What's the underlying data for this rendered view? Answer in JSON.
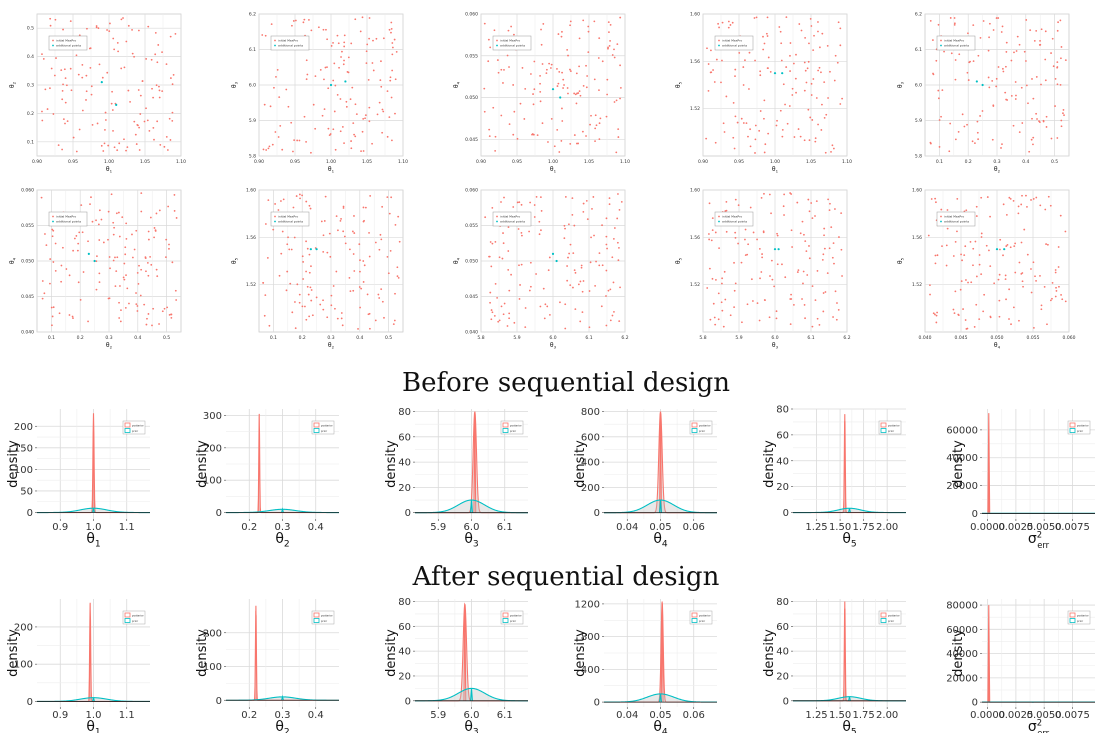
{
  "headings": {
    "before": "Before sequential design",
    "after": "After sequential design"
  },
  "colors": {
    "initial": "#f8766d",
    "additional": "#00bfc4",
    "grid": "#dadada",
    "panel_border": "#cccccc"
  },
  "chart_data": [
    {
      "type": "scatter",
      "xlabel": "θ1",
      "ylabel": "θ2",
      "xlim": [
        0.9,
        1.1
      ],
      "ylim": [
        0.05,
        0.55
      ],
      "xticks": [
        "0.90",
        "0.95",
        "1.00",
        "1.05",
        "1.10"
      ],
      "yticks": [
        "0.1",
        "0.2",
        "0.3",
        "0.4",
        "0.5"
      ],
      "legend": [
        "initial MaxPro",
        "additional points"
      ],
      "legend_pos": "top-left",
      "additional_points": [
        [
          1.01,
          0.23
        ],
        [
          0.99,
          0.31
        ]
      ],
      "n_initial": 150
    },
    {
      "type": "scatter",
      "xlabel": "θ1",
      "ylabel": "θ3",
      "xlim": [
        0.9,
        1.1
      ],
      "ylim": [
        5.8,
        6.2
      ],
      "xticks": [
        "0.90",
        "0.95",
        "1.00",
        "1.05",
        "1.10"
      ],
      "yticks": [
        "5.8",
        "5.9",
        "6.0",
        "6.1",
        "6.2"
      ],
      "legend": [
        "initial MaxPro",
        "additional points"
      ],
      "legend_pos": "top-left",
      "additional_points": [
        [
          1.02,
          6.01
        ],
        [
          1.0,
          6.0
        ]
      ],
      "n_initial": 150
    },
    {
      "type": "scatter",
      "xlabel": "θ1",
      "ylabel": "θ4",
      "xlim": [
        0.9,
        1.1
      ],
      "ylim": [
        0.043,
        0.06
      ],
      "xticks": [
        "0.90",
        "0.95",
        "1.00",
        "1.05",
        "1.10"
      ],
      "yticks": [
        "0.045",
        "0.050",
        "0.055",
        "0.060"
      ],
      "legend": [
        "initial MaxPro",
        "additional points"
      ],
      "legend_pos": "top-left",
      "additional_points": [
        [
          1.0,
          0.051
        ],
        [
          1.01,
          0.05
        ]
      ],
      "n_initial": 150
    },
    {
      "type": "scatter",
      "xlabel": "θ1",
      "ylabel": "θ5",
      "xlim": [
        0.9,
        1.1
      ],
      "ylim": [
        1.48,
        1.6
      ],
      "xticks": [
        "0.90",
        "0.95",
        "1.00",
        "1.05",
        "1.10"
      ],
      "yticks": [
        "1.52",
        "1.56",
        "1.60"
      ],
      "legend": [
        "initial MaxPro",
        "additional points"
      ],
      "legend_pos": "top-left",
      "additional_points": [
        [
          1.0,
          1.55
        ],
        [
          1.01,
          1.55
        ]
      ],
      "n_initial": 150
    },
    {
      "type": "scatter",
      "xlabel": "θ2",
      "ylabel": "θ3",
      "xlim": [
        0.05,
        0.55
      ],
      "ylim": [
        5.8,
        6.2
      ],
      "xticks": [
        "0.1",
        "0.2",
        "0.3",
        "0.4",
        "0.5"
      ],
      "yticks": [
        "5.8",
        "5.9",
        "6.0",
        "6.1",
        "6.2"
      ],
      "legend": [
        "initial MaxPro",
        "additional points"
      ],
      "legend_pos": "top-left",
      "additional_points": [
        [
          0.23,
          6.01
        ],
        [
          0.25,
          6.0
        ]
      ],
      "n_initial": 150
    },
    {
      "type": "scatter",
      "xlabel": "θ2",
      "ylabel": "θ4",
      "xlim": [
        0.05,
        0.55
      ],
      "ylim": [
        0.04,
        0.06
      ],
      "xticks": [
        "0.1",
        "0.2",
        "0.3",
        "0.4",
        "0.5"
      ],
      "yticks": [
        "0.040",
        "0.045",
        "0.050",
        "0.055",
        "0.060"
      ],
      "legend": [
        "initial MaxPro",
        "additional points"
      ],
      "legend_pos": "top-left",
      "additional_points": [
        [
          0.23,
          0.051
        ],
        [
          0.25,
          0.05
        ]
      ],
      "n_initial": 150
    },
    {
      "type": "scatter",
      "xlabel": "θ2",
      "ylabel": "θ5",
      "xlim": [
        0.05,
        0.55
      ],
      "ylim": [
        1.48,
        1.6
      ],
      "xticks": [
        "0.1",
        "0.2",
        "0.3",
        "0.4",
        "0.5"
      ],
      "yticks": [
        "1.52",
        "1.56",
        "1.60"
      ],
      "legend": [
        "initial MaxPro",
        "additional points"
      ],
      "legend_pos": "top-left",
      "additional_points": [
        [
          0.23,
          1.55
        ],
        [
          0.25,
          1.55
        ]
      ],
      "n_initial": 150
    },
    {
      "type": "scatter",
      "xlabel": "θ3",
      "ylabel": "θ4",
      "xlim": [
        5.8,
        6.2
      ],
      "ylim": [
        0.04,
        0.06
      ],
      "xticks": [
        "5.8",
        "5.9",
        "6.0",
        "6.1",
        "6.2"
      ],
      "yticks": [
        "0.040",
        "0.045",
        "0.050",
        "0.055",
        "0.060"
      ],
      "legend": [
        "initial MaxPro",
        "additional points"
      ],
      "legend_pos": "top-left",
      "additional_points": [
        [
          6.0,
          0.051
        ],
        [
          6.01,
          0.05
        ]
      ],
      "n_initial": 150
    },
    {
      "type": "scatter",
      "xlabel": "θ3",
      "ylabel": "θ5",
      "xlim": [
        5.8,
        6.2
      ],
      "ylim": [
        1.48,
        1.6
      ],
      "xticks": [
        "5.8",
        "5.9",
        "6.0",
        "6.1",
        "6.2"
      ],
      "yticks": [
        "1.52",
        "1.56",
        "1.60"
      ],
      "legend": [
        "initial MaxPro",
        "additional points"
      ],
      "legend_pos": "top-left",
      "additional_points": [
        [
          6.0,
          1.55
        ],
        [
          6.01,
          1.55
        ]
      ],
      "n_initial": 150
    },
    {
      "type": "scatter",
      "xlabel": "θ4",
      "ylabel": "θ5",
      "xlim": [
        0.04,
        0.06
      ],
      "ylim": [
        1.48,
        1.6
      ],
      "xticks": [
        "0.040",
        "0.045",
        "0.050",
        "0.055",
        "0.060"
      ],
      "yticks": [
        "1.52",
        "1.56",
        "1.60"
      ],
      "legend": [
        "initial MaxPro",
        "additional points"
      ],
      "legend_pos": "top-left",
      "additional_points": [
        [
          0.05,
          1.55
        ],
        [
          0.051,
          1.55
        ]
      ],
      "n_initial": 150
    },
    {
      "type": "line",
      "section": "before",
      "xlabel": "θ1",
      "ylabel": "density",
      "xlim": [
        0.83,
        1.17
      ],
      "ylim": [
        -15,
        240
      ],
      "xticks": [
        [
          "0.9",
          0.9
        ],
        [
          "1.0",
          1.0
        ],
        [
          "1.1",
          1.1
        ]
      ],
      "yticks": [
        [
          "0",
          0
        ],
        [
          "50",
          50
        ],
        [
          "100",
          100
        ],
        [
          "150",
          150
        ],
        [
          "200",
          200
        ]
      ],
      "legend": [
        "posterior",
        "prior"
      ],
      "legend_pos": "top-right",
      "series": [
        {
          "name": "posterior",
          "mean": 1.0,
          "sd": 0.0017,
          "peak": 230
        },
        {
          "name": "prior",
          "mean": 1.0,
          "sd": 0.04,
          "peak": 10
        }
      ]
    },
    {
      "type": "line",
      "section": "before",
      "xlabel": "θ2",
      "ylabel": "density",
      "xlim": [
        0.13,
        0.47
      ],
      "ylim": [
        -20,
        320
      ],
      "xticks": [
        [
          "0.2",
          0.2
        ],
        [
          "0.3",
          0.3
        ],
        [
          "0.4",
          0.4
        ]
      ],
      "yticks": [
        [
          "0",
          0
        ],
        [
          "100",
          100
        ],
        [
          "200",
          200
        ],
        [
          "300",
          300
        ]
      ],
      "legend": [
        "posterior",
        "prior"
      ],
      "legend_pos": "top-right",
      "series": [
        {
          "name": "posterior",
          "mean": 0.23,
          "sd": 0.0013,
          "peak": 305
        },
        {
          "name": "prior",
          "mean": 0.3,
          "sd": 0.04,
          "peak": 10
        }
      ]
    },
    {
      "type": "line",
      "section": "before",
      "xlabel": "θ3",
      "ylabel": "density",
      "xlim": [
        5.83,
        6.17
      ],
      "ylim": [
        -5,
        82
      ],
      "xticks": [
        [
          "5.9",
          5.9
        ],
        [
          "6.0",
          6.0
        ],
        [
          "6.1",
          6.1
        ]
      ],
      "yticks": [
        [
          "0",
          0
        ],
        [
          "20",
          20
        ],
        [
          "40",
          40
        ],
        [
          "60",
          60
        ],
        [
          "80",
          80
        ]
      ],
      "legend": [
        "posterior",
        "prior"
      ],
      "legend_pos": "top-right",
      "series": [
        {
          "name": "posterior",
          "mean": 6.01,
          "sd": 0.005,
          "peak": 80
        },
        {
          "name": "prior",
          "mean": 6.0,
          "sd": 0.04,
          "peak": 10
        }
      ]
    },
    {
      "type": "line",
      "section": "before",
      "xlabel": "θ4",
      "ylabel": "density",
      "xlim": [
        0.033,
        0.067
      ],
      "ylim": [
        -50,
        820
      ],
      "xticks": [
        [
          "0.04",
          0.04
        ],
        [
          "0.05",
          0.05
        ],
        [
          "0.06",
          0.06
        ]
      ],
      "yticks": [
        [
          "0",
          0
        ],
        [
          "200",
          200
        ],
        [
          "400",
          400
        ],
        [
          "600",
          600
        ],
        [
          "800",
          800
        ]
      ],
      "legend": [
        "posterior",
        "prior"
      ],
      "legend_pos": "top-right",
      "series": [
        {
          "name": "posterior",
          "mean": 0.05,
          "sd": 0.0005,
          "peak": 800
        },
        {
          "name": "prior",
          "mean": 0.05,
          "sd": 0.004,
          "peak": 100
        }
      ]
    },
    {
      "type": "line",
      "section": "before",
      "xlabel": "θ5",
      "ylabel": "density",
      "xlim": [
        1.0,
        2.2
      ],
      "ylim": [
        -5,
        80
      ],
      "xticks": [
        [
          "1.25",
          1.25
        ],
        [
          "1.50",
          1.5
        ],
        [
          "1.75",
          1.75
        ],
        [
          "2.00",
          2.0
        ]
      ],
      "yticks": [
        [
          "0",
          0
        ],
        [
          "20",
          20
        ],
        [
          "40",
          40
        ],
        [
          "60",
          60
        ],
        [
          "80",
          80
        ]
      ],
      "legend": [
        "posterior",
        "prior"
      ],
      "legend_pos": "top-right",
      "series": [
        {
          "name": "posterior",
          "mean": 1.55,
          "sd": 0.005,
          "peak": 76
        },
        {
          "name": "prior",
          "mean": 1.6,
          "sd": 0.12,
          "peak": 3.3
        }
      ]
    },
    {
      "type": "line",
      "section": "before",
      "xlabel": "σ²err",
      "ylabel": "density",
      "xlim": [
        -0.0005,
        0.0095
      ],
      "ylim": [
        -4000,
        75000
      ],
      "xticks": [
        [
          "0.0000",
          0.0
        ],
        [
          "0.0025",
          0.0025
        ],
        [
          "0.0050",
          0.005
        ],
        [
          "0.0075",
          0.0075
        ]
      ],
      "yticks": [
        [
          "0",
          0
        ],
        [
          "20000",
          20000
        ],
        [
          "40000",
          40000
        ],
        [
          "60000",
          60000
        ]
      ],
      "legend": [
        "posterior",
        "prior"
      ],
      "legend_pos": "top-right",
      "series": [
        {
          "name": "posterior",
          "mean": 0.0001,
          "sd": 1e-05,
          "peak": 72000
        },
        {
          "name": "prior",
          "mean": 0.004,
          "sd": 1,
          "peak": 80
        }
      ]
    },
    {
      "type": "line",
      "section": "after",
      "xlabel": "θ1",
      "ylabel": "density",
      "xlim": [
        0.83,
        1.17
      ],
      "ylim": [
        -15,
        275
      ],
      "xticks": [
        [
          "0.9",
          0.9
        ],
        [
          "1.0",
          1.0
        ],
        [
          "1.1",
          1.1
        ]
      ],
      "yticks": [
        [
          "0",
          0
        ],
        [
          "100",
          100
        ],
        [
          "200",
          200
        ]
      ],
      "legend": [
        "posterior",
        "prior"
      ],
      "legend_pos": "top-right",
      "series": [
        {
          "name": "posterior",
          "mean": 0.99,
          "sd": 0.0015,
          "peak": 265
        },
        {
          "name": "prior",
          "mean": 1.0,
          "sd": 0.04,
          "peak": 10
        }
      ]
    },
    {
      "type": "line",
      "section": "after",
      "xlabel": "θ2",
      "ylabel": "density",
      "xlim": [
        0.13,
        0.47
      ],
      "ylim": [
        -20,
        300
      ],
      "xticks": [
        [
          "0.2",
          0.2
        ],
        [
          "0.3",
          0.3
        ],
        [
          "0.4",
          0.4
        ]
      ],
      "yticks": [
        [
          "0",
          0
        ],
        [
          "100",
          100
        ],
        [
          "200",
          200
        ]
      ],
      "legend": [
        "posterior",
        "prior"
      ],
      "legend_pos": "top-right",
      "series": [
        {
          "name": "posterior",
          "mean": 0.22,
          "sd": 0.0014,
          "peak": 280
        },
        {
          "name": "prior",
          "mean": 0.3,
          "sd": 0.04,
          "peak": 10
        }
      ]
    },
    {
      "type": "line",
      "section": "after",
      "xlabel": "θ3",
      "ylabel": "density",
      "xlim": [
        5.83,
        6.17
      ],
      "ylim": [
        -5,
        82
      ],
      "xticks": [
        [
          "5.9",
          5.9
        ],
        [
          "6.0",
          6.0
        ],
        [
          "6.1",
          6.1
        ]
      ],
      "yticks": [
        [
          "0",
          0
        ],
        [
          "20",
          20
        ],
        [
          "40",
          40
        ],
        [
          "60",
          60
        ],
        [
          "80",
          80
        ]
      ],
      "legend": [
        "posterior",
        "prior"
      ],
      "legend_pos": "top-right",
      "series": [
        {
          "name": "posterior",
          "mean": 5.98,
          "sd": 0.005,
          "peak": 78
        },
        {
          "name": "prior",
          "mean": 6.0,
          "sd": 0.04,
          "peak": 10
        }
      ]
    },
    {
      "type": "line",
      "section": "after",
      "xlabel": "θ4",
      "ylabel": "density",
      "xlim": [
        0.033,
        0.067
      ],
      "ylim": [
        -60,
        1260
      ],
      "xticks": [
        [
          "0.04",
          0.04
        ],
        [
          "0.05",
          0.05
        ],
        [
          "0.06",
          0.06
        ]
      ],
      "yticks": [
        [
          "0",
          0
        ],
        [
          "400",
          400
        ],
        [
          "800",
          800
        ],
        [
          "1200",
          1200
        ]
      ],
      "legend": [
        "posterior",
        "prior"
      ],
      "legend_pos": "top-right",
      "series": [
        {
          "name": "posterior",
          "mean": 0.0505,
          "sd": 0.00032,
          "peak": 1230
        },
        {
          "name": "prior",
          "mean": 0.05,
          "sd": 0.004,
          "peak": 100
        }
      ]
    },
    {
      "type": "line",
      "section": "after",
      "xlabel": "θ5",
      "ylabel": "density",
      "xlim": [
        1.0,
        2.2
      ],
      "ylim": [
        -5,
        82
      ],
      "xticks": [
        [
          "1.25",
          1.25
        ],
        [
          "1.50",
          1.5
        ],
        [
          "1.75",
          1.75
        ],
        [
          "2.00",
          2.0
        ]
      ],
      "yticks": [
        [
          "0",
          0
        ],
        [
          "20",
          20
        ],
        [
          "40",
          40
        ],
        [
          "60",
          60
        ],
        [
          "80",
          80
        ]
      ],
      "legend": [
        "posterior",
        "prior"
      ],
      "legend_pos": "top-right",
      "series": [
        {
          "name": "posterior",
          "mean": 1.55,
          "sd": 0.005,
          "peak": 80
        },
        {
          "name": "prior",
          "mean": 1.6,
          "sd": 0.12,
          "peak": 3.3
        }
      ]
    },
    {
      "type": "line",
      "section": "after",
      "xlabel": "σ²err",
      "ylabel": "density",
      "xlim": [
        -0.0005,
        0.0095
      ],
      "ylim": [
        -4000,
        85000
      ],
      "xticks": [
        [
          "0.0000",
          0.0
        ],
        [
          "0.0025",
          0.0025
        ],
        [
          "0.0050",
          0.005
        ],
        [
          "0.0075",
          0.0075
        ]
      ],
      "yticks": [
        [
          "0",
          0
        ],
        [
          "20000",
          20000
        ],
        [
          "40000",
          40000
        ],
        [
          "60000",
          60000
        ],
        [
          "80000",
          80000
        ]
      ],
      "legend": [
        "posterior",
        "prior"
      ],
      "legend_pos": "top-right",
      "series": [
        {
          "name": "posterior",
          "mean": 0.0001,
          "sd": 1e-05,
          "peak": 80000
        },
        {
          "name": "prior",
          "mean": 0.004,
          "sd": 1,
          "peak": 80
        }
      ]
    }
  ]
}
